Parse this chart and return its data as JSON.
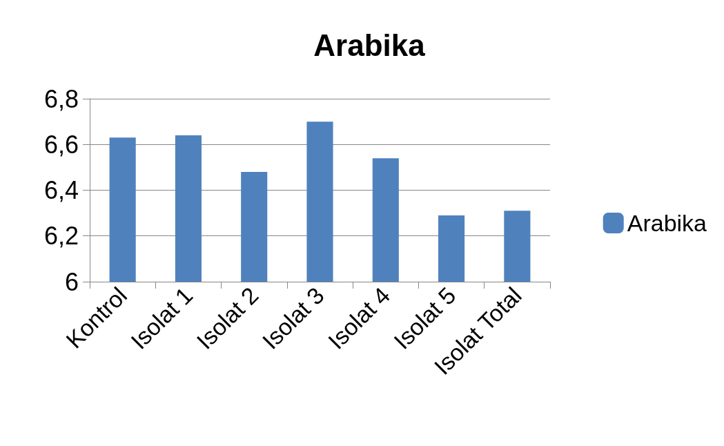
{
  "chart_data": {
    "type": "bar",
    "title": "Arabika",
    "categories": [
      "Kontrol",
      "Isolat 1",
      "Isolat 2",
      "Isolat 3",
      "Isolat 4",
      "Isolat 5",
      "Isolat Total"
    ],
    "series": [
      {
        "name": "Arabika",
        "color": "#4f81bd",
        "values": [
          6.63,
          6.64,
          6.48,
          6.7,
          6.54,
          6.29,
          6.31
        ]
      }
    ],
    "ylim": [
      6,
      6.8
    ],
    "yticks": [
      6,
      {
        "value": 6.2,
        "label": "6,2"
      },
      {
        "value": 6.4,
        "label": "6,4"
      },
      {
        "value": 6.6,
        "label": "6,6"
      },
      {
        "value": 6.8,
        "label": "6,8"
      }
    ],
    "grid": "y",
    "legend": "right"
  }
}
